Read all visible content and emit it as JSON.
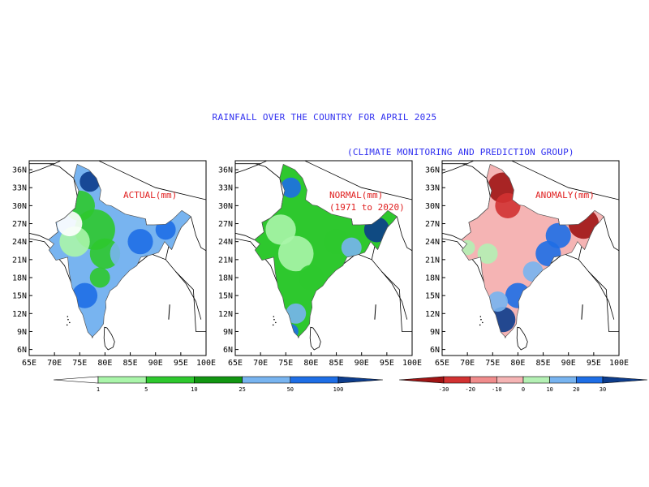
{
  "title": "RAINFALL OVER THE COUNTRY FOR APRIL 2025",
  "subtitle": "(CLIMATE MONITORING AND PREDICTION GROUP)",
  "axes": {
    "x_ticks": [
      "65E",
      "70E",
      "75E",
      "80E",
      "85E",
      "90E",
      "95E",
      "100E"
    ],
    "y_ticks": [
      "36N",
      "33N",
      "30N",
      "27N",
      "24N",
      "21N",
      "18N",
      "15N",
      "12N",
      "9N",
      "6N"
    ]
  },
  "panels": [
    {
      "label": "ACTUAL(mm)",
      "label2": "",
      "label_color": "#e02020"
    },
    {
      "label": "NORMAL(mm)",
      "label2": "(1971 to 2020)",
      "label_color": "#e02020"
    },
    {
      "label": "ANOMALY(mm)",
      "label2": "",
      "label_color": "#e02020"
    }
  ],
  "colorbar_rain": {
    "labels": [
      "1",
      "5",
      "10",
      "25",
      "50",
      "100"
    ],
    "colors": [
      "#ffffff",
      "#aaf5aa",
      "#2ec82e",
      "#129612",
      "#78b4f0",
      "#1e6ee6",
      "#0c3c8c"
    ]
  },
  "colorbar_anomaly": {
    "labels": [
      "-30",
      "-20",
      "-10",
      "0",
      "10",
      "20",
      "30"
    ],
    "colors": [
      "#a01414",
      "#d23232",
      "#f08c8c",
      "#f5b4b4",
      "#b4f0b4",
      "#78b4f0",
      "#1e6ee6",
      "#0c3c8c"
    ]
  }
}
